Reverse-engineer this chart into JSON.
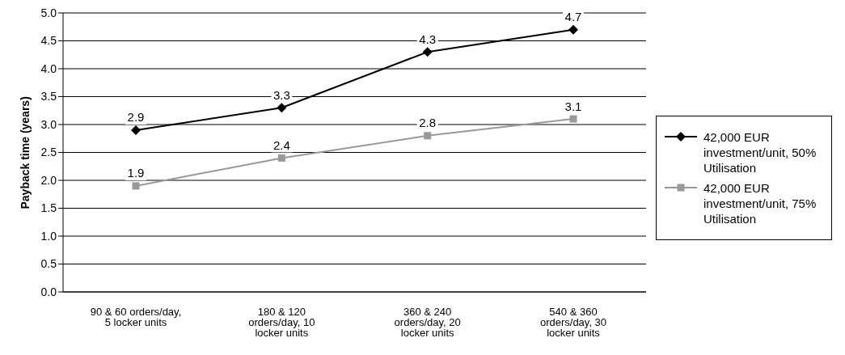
{
  "chart_data": {
    "type": "line",
    "ylabel": "Payback time (years)",
    "categories": [
      "90 & 60 orders/day, 5 locker units",
      "180 & 120 orders/day, 10 locker units",
      "360 & 240 orders/day, 20 locker units",
      "540 & 360 orders/day, 30 locker units"
    ],
    "series": [
      {
        "name": "42,000 EUR investment/unit, 50% Utilisation",
        "color": "#000000",
        "marker": "diamond",
        "values": [
          2.9,
          3.3,
          4.3,
          4.7
        ]
      },
      {
        "name": "42,000 EUR investment/unit, 75% Utilisation",
        "color": "#999999",
        "marker": "square",
        "values": [
          1.9,
          2.4,
          2.8,
          3.1
        ]
      }
    ],
    "ylim": [
      0,
      5
    ],
    "yticks": [
      {
        "value": 0,
        "label": "0.0"
      },
      0.5,
      {
        "value": 1,
        "label": "1.0"
      },
      1.5,
      {
        "value": 2,
        "label": "2.0"
      },
      2.5,
      {
        "value": 3,
        "label": "3.0"
      },
      3.5,
      {
        "value": 4,
        "label": "4.0"
      },
      4.5,
      {
        "value": 5,
        "label": "5.0"
      }
    ],
    "grid": "y",
    "legend": "right",
    "data_labels": true,
    "line_style": "solid"
  }
}
